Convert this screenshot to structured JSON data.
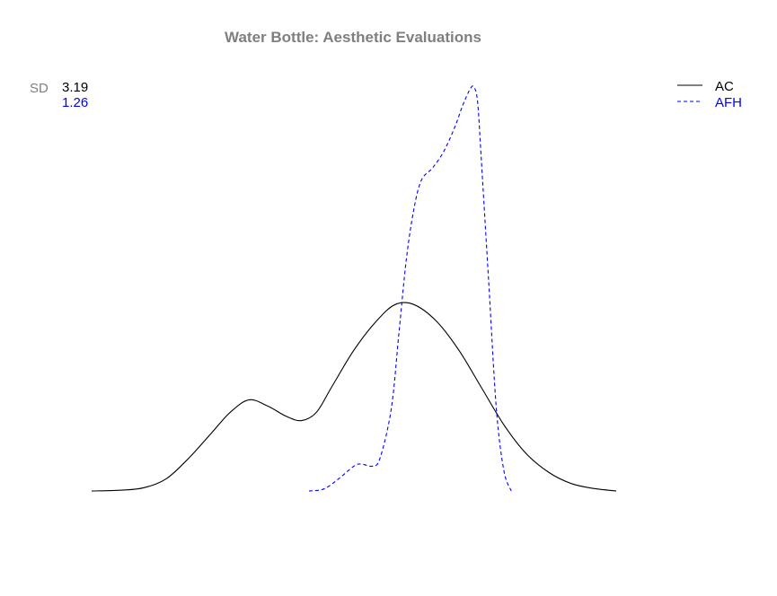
{
  "chart_data": {
    "type": "line",
    "title": "Water Bottle: Aesthetic Evaluations",
    "xlabel": "",
    "ylabel": "",
    "axes_visible": false,
    "grid": false,
    "legend_position": "top-right",
    "sd_label": "SD",
    "series": [
      {
        "name": "AC",
        "sd": "3.19",
        "color": "#000000",
        "line_style": "solid",
        "points": [
          [
            0.0,
            0.0
          ],
          [
            0.04,
            0.002
          ],
          [
            0.07,
            0.008
          ],
          [
            0.1,
            0.03
          ],
          [
            0.13,
            0.08
          ],
          [
            0.16,
            0.14
          ],
          [
            0.185,
            0.19
          ],
          [
            0.21,
            0.22
          ],
          [
            0.235,
            0.205
          ],
          [
            0.26,
            0.18
          ],
          [
            0.28,
            0.17
          ],
          [
            0.3,
            0.19
          ],
          [
            0.32,
            0.25
          ],
          [
            0.35,
            0.34
          ],
          [
            0.38,
            0.41
          ],
          [
            0.405,
            0.45
          ],
          [
            0.43,
            0.45
          ],
          [
            0.46,
            0.41
          ],
          [
            0.49,
            0.34
          ],
          [
            0.52,
            0.25
          ],
          [
            0.55,
            0.16
          ],
          [
            0.58,
            0.09
          ],
          [
            0.61,
            0.045
          ],
          [
            0.64,
            0.018
          ],
          [
            0.67,
            0.006
          ],
          [
            0.7,
            0.0
          ]
        ]
      },
      {
        "name": "AFH",
        "sd": "1.26",
        "color": "#0000ff",
        "line_style": "dashed",
        "points": [
          [
            0.29,
            0.0
          ],
          [
            0.31,
            0.005
          ],
          [
            0.33,
            0.03
          ],
          [
            0.35,
            0.06
          ],
          [
            0.36,
            0.065
          ],
          [
            0.375,
            0.06
          ],
          [
            0.385,
            0.08
          ],
          [
            0.4,
            0.2
          ],
          [
            0.41,
            0.38
          ],
          [
            0.42,
            0.56
          ],
          [
            0.43,
            0.68
          ],
          [
            0.44,
            0.75
          ],
          [
            0.455,
            0.78
          ],
          [
            0.47,
            0.82
          ],
          [
            0.485,
            0.88
          ],
          [
            0.495,
            0.93
          ],
          [
            0.505,
            0.97
          ],
          [
            0.51,
            0.975
          ],
          [
            0.515,
            0.94
          ],
          [
            0.52,
            0.8
          ],
          [
            0.53,
            0.5
          ],
          [
            0.54,
            0.2
          ],
          [
            0.55,
            0.05
          ],
          [
            0.56,
            0.0
          ]
        ]
      }
    ]
  }
}
